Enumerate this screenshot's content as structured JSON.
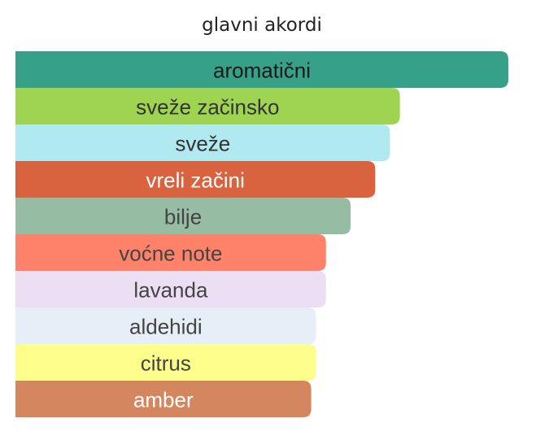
{
  "chart_data": {
    "type": "bar",
    "orientation": "horizontal",
    "title": "glavni akordi",
    "categories": [
      "aromatični",
      "sveže začinsko",
      "sveže",
      "vreli začini",
      "bilje",
      "voćne note",
      "lavanda",
      "aldehidi",
      "citrus",
      "amber"
    ],
    "values": [
      100,
      78,
      76,
      73,
      68,
      63,
      63,
      61,
      61,
      60
    ],
    "colors": [
      "#37a089",
      "#9ed452",
      "#b0e9f0",
      "#d9633e",
      "#96bda4",
      "#fe8169",
      "#ecdef3",
      "#e6eff8",
      "#fcfd8a",
      "#d4875f"
    ],
    "label_colors": [
      "#1a1a1a",
      "#333333",
      "#333333",
      "#ffffff",
      "#444444",
      "#444444",
      "#444444",
      "#444444",
      "#444444",
      "#ffffff"
    ],
    "xlim": [
      0,
      100
    ]
  }
}
